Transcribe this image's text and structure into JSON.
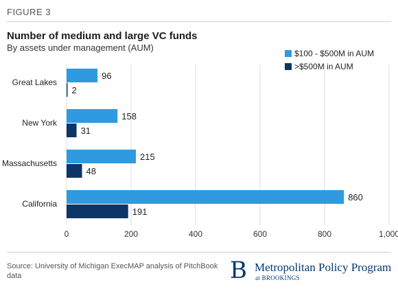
{
  "figure_label": "FIGURE 3",
  "source": "Source: University of Michigan ExecMAP analysis of PitchBook data",
  "brand": {
    "name": "Metropolitan Policy Program",
    "sub": "at BROOKINGS",
    "mark": "B"
  },
  "colors": {
    "series1": "#2f9ae0",
    "series2": "#0d3566"
  },
  "chart_data": {
    "type": "bar",
    "orientation": "horizontal",
    "title": "Number of medium and large VC funds",
    "subtitle": "By assets under management (AUM)",
    "xlabel": "",
    "ylabel": "",
    "categories": [
      "Great Lakes",
      "New York",
      "Massachusetts",
      "California"
    ],
    "series": [
      {
        "name": "$100 - $500M in AUM",
        "values": [
          96,
          158,
          215,
          860
        ]
      },
      {
        "name": ">$500M in AUM",
        "values": [
          2,
          31,
          48,
          191
        ]
      }
    ],
    "xlim": [
      0,
      1000
    ],
    "xticks": [
      0,
      200,
      400,
      600,
      800,
      1000
    ],
    "xtick_labels": [
      "0",
      "200",
      "400",
      "600",
      "800",
      "1,000"
    ],
    "grid": true,
    "legend": "top-right"
  }
}
